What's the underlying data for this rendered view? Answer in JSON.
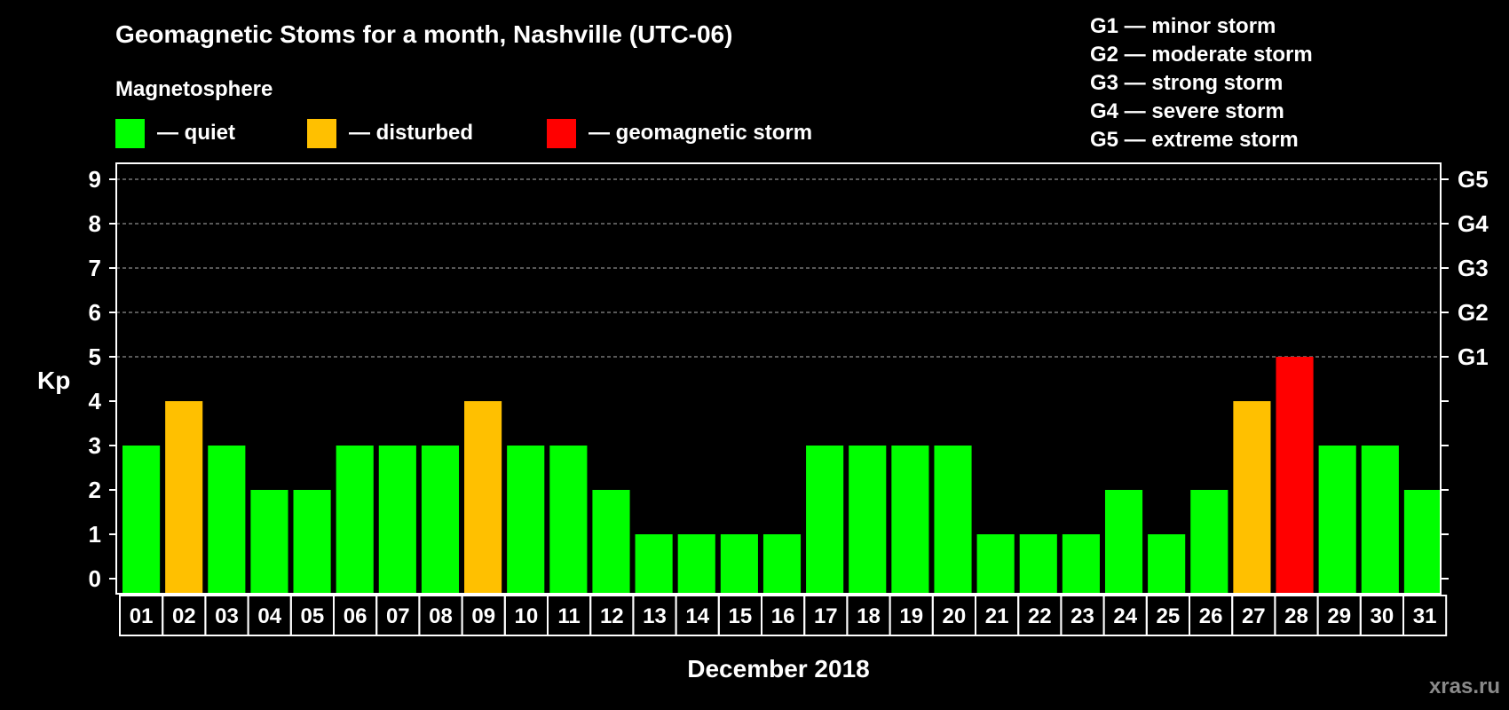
{
  "chart_data": {
    "type": "bar",
    "title": "Geomagnetic Stoms for a month, Nashville (UTC-06)",
    "subtitle": "Magnetosphere",
    "xlabel": "December 2018",
    "ylabel": "Kp",
    "ylim": [
      0,
      9
    ],
    "yticks": [
      "0",
      "1",
      "2",
      "3",
      "4",
      "5",
      "6",
      "7",
      "8",
      "9"
    ],
    "right_ticks": [
      {
        "value": 5,
        "label": "G1"
      },
      {
        "value": 6,
        "label": "G2"
      },
      {
        "value": 7,
        "label": "G3"
      },
      {
        "value": 8,
        "label": "G4"
      },
      {
        "value": 9,
        "label": "G5"
      }
    ],
    "grid": true,
    "legend": [
      {
        "label": "— quiet",
        "color": "#00ff00"
      },
      {
        "label": "— disturbed",
        "color": "#ffc000"
      },
      {
        "label": "— geomagnetic storm",
        "color": "#ff0000"
      }
    ],
    "storm_scale": [
      "G1 — minor storm",
      "G2 — moderate storm",
      "G3 — strong storm",
      "G4 — severe storm",
      "G5 — extreme storm"
    ],
    "categories": [
      "01",
      "02",
      "03",
      "04",
      "05",
      "06",
      "07",
      "08",
      "09",
      "10",
      "11",
      "12",
      "13",
      "14",
      "15",
      "16",
      "17",
      "18",
      "19",
      "20",
      "21",
      "22",
      "23",
      "24",
      "25",
      "26",
      "27",
      "28",
      "29",
      "30",
      "31"
    ],
    "values": [
      3,
      4,
      3,
      2,
      2,
      3,
      3,
      3,
      4,
      3,
      3,
      2,
      1,
      1,
      1,
      1,
      3,
      3,
      3,
      3,
      1,
      1,
      1,
      2,
      1,
      2,
      4,
      5,
      3,
      3,
      2
    ],
    "colors": {
      "quiet": "#00ff00",
      "disturbed": "#ffc000",
      "storm": "#ff0000"
    }
  },
  "watermark": "xras.ru"
}
